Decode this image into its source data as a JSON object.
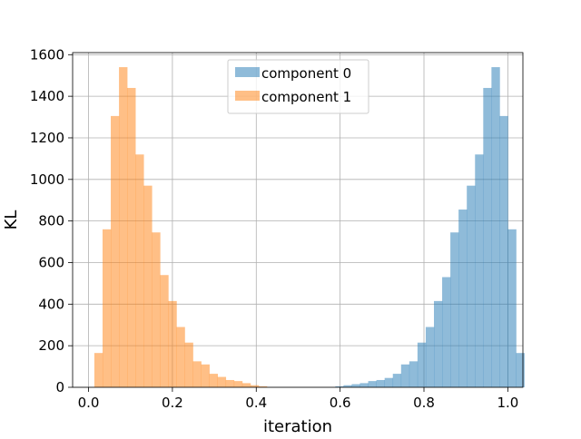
{
  "chart_data": {
    "type": "bar",
    "title": "",
    "xlabel": "iteration",
    "ylabel": "KL",
    "xlim": [
      -0.038,
      1.036
    ],
    "ylim": [
      0,
      1610
    ],
    "x_ticks": [
      0.0,
      0.2,
      0.4,
      0.6,
      0.8,
      1.0
    ],
    "x_tick_labels": [
      "0.0",
      "0.2",
      "0.4",
      "0.6",
      "0.8",
      "1.0"
    ],
    "y_ticks": [
      0,
      200,
      400,
      600,
      800,
      1000,
      1200,
      1400,
      1600
    ],
    "y_tick_labels": [
      "0",
      "200",
      "400",
      "600",
      "800",
      "1000",
      "1200",
      "1400",
      "1600"
    ],
    "grid": true,
    "legend_position": "upper-center",
    "bin_width": 0.0196,
    "series": [
      {
        "name": "component 0",
        "color": "#1f77b4",
        "alpha": 0.5,
        "bin_start": 0.5886,
        "values": [
          5,
          10,
          15,
          20,
          30,
          35,
          45,
          65,
          110,
          125,
          215,
          290,
          415,
          530,
          745,
          855,
          970,
          1120,
          1440,
          1540,
          1305,
          760,
          165
        ]
      },
      {
        "name": "component 1",
        "color": "#ff7f0e",
        "alpha": 0.5,
        "bin_start": 0.0138,
        "values": [
          165,
          760,
          1305,
          1540,
          1440,
          1120,
          970,
          745,
          540,
          415,
          290,
          215,
          125,
          110,
          65,
          50,
          35,
          30,
          20,
          10,
          5
        ]
      }
    ]
  }
}
